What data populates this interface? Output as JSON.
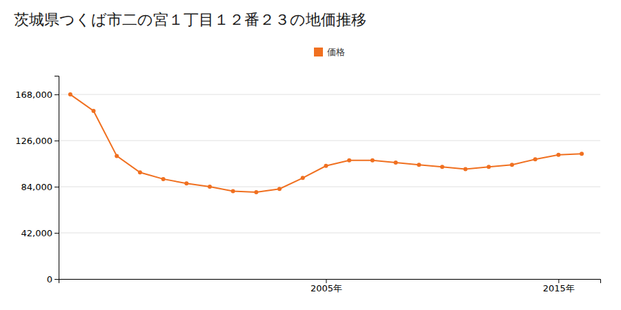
{
  "chart_data": {
    "type": "line",
    "title": "茨城県つくば市二の宮１丁目１２番２３の地価推移",
    "x": [
      1994,
      1995,
      1996,
      1997,
      1998,
      1999,
      2000,
      2001,
      2002,
      2003,
      2004,
      2005,
      2006,
      2007,
      2008,
      2009,
      2010,
      2011,
      2012,
      2013,
      2014,
      2015,
      2016
    ],
    "series": [
      {
        "name": "価格",
        "color": "#f07020",
        "marker": "circle",
        "values": [
          168000,
          153000,
          112000,
          97000,
          91000,
          87000,
          84000,
          80000,
          79000,
          82000,
          92000,
          103000,
          108000,
          108000,
          106000,
          104000,
          102000,
          100000,
          102000,
          104000,
          109000,
          113000,
          114000
        ]
      }
    ],
    "xlim": [
      1993.5,
      2016.8
    ],
    "xticks": [
      {
        "value": 2005,
        "label": "2005年"
      },
      {
        "value": 2015,
        "label": "2015年"
      }
    ],
    "ylim": [
      0,
      185000
    ],
    "yticks": [
      0,
      {
        "value": 42000,
        "label": "42,000"
      },
      {
        "value": 84000,
        "label": "84,000"
      },
      {
        "value": 126000,
        "label": "126,000"
      },
      {
        "value": 168000,
        "label": "168,000"
      }
    ],
    "grid": true,
    "legend": "top"
  }
}
